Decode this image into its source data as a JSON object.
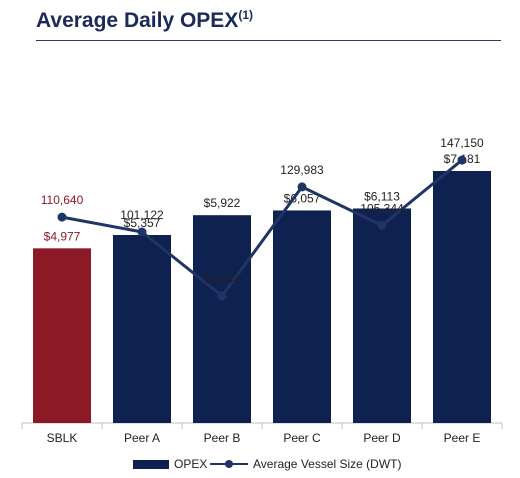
{
  "header": {
    "title": "Average Daily OPEX",
    "title_superscript": "(1)"
  },
  "chart_data": {
    "type": "bar",
    "categories": [
      "SBLK",
      "Peer A",
      "Peer B",
      "Peer C",
      "Peer D",
      "Peer E"
    ],
    "series": [
      {
        "name": "OPEX",
        "chart_type": "bar",
        "values": [
          4977,
          5357,
          5922,
          6057,
          6113,
          7181
        ],
        "labels": [
          "$4,977",
          "$5,357",
          "$5,922",
          "$6,057",
          "$6,113",
          "$7,181"
        ],
        "color": "#0f2150",
        "highlight": {
          "category": "SBLK",
          "color": "#8b1a26"
        }
      },
      {
        "name": "Average Vessel Size (DWT)",
        "chart_type": "line",
        "values": [
          110640,
          101122,
          60244,
          129983,
          105344,
          147150
        ],
        "labels": [
          "110,640",
          "101,122",
          "60,244",
          "129,983",
          "105,344",
          "147,150"
        ],
        "color": "#1f3565",
        "highlight": {
          "category": "SBLK",
          "label_color": "#8b1a26"
        }
      }
    ],
    "title": "Average Daily OPEX",
    "xlabel": "",
    "ylabel": "",
    "grid": false,
    "legend": "bottom"
  }
}
